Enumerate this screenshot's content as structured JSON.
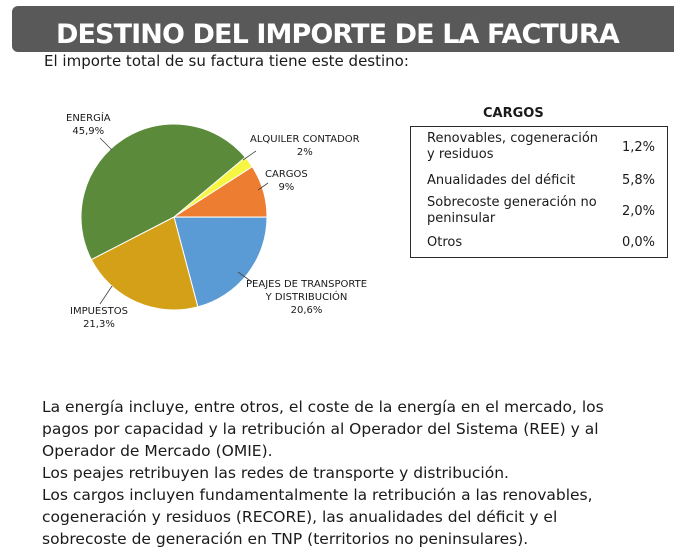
{
  "header": {
    "title": "DESTINO DEL IMPORTE DE LA FACTURA",
    "subtitle": "El importe total de su factura tiene este destino:"
  },
  "chart_data": {
    "type": "pie",
    "slices": [
      {
        "label": "ENERGÍA",
        "value_label": "45,9%",
        "value": 45.9,
        "color": "#5a8a3a"
      },
      {
        "label": "ALQUILER CONTADOR",
        "value_label": "2%",
        "value": 2,
        "color": "#f5f542"
      },
      {
        "label": "CARGOS",
        "value_label": "9%",
        "value": 9,
        "color": "#ed7d31"
      },
      {
        "label": "PEAJES DE TRANSPORTE Y DISTRIBUCIÓN",
        "label_lines": [
          "PEAJES DE TRANSPORTE",
          "Y DISTRIBUCIÓN"
        ],
        "value_label": "20,6%",
        "value": 20.6,
        "color": "#5b9bd5"
      },
      {
        "label": "IMPUESTOS",
        "value_label": "21,3%",
        "value": 21.3,
        "color": "#d4a017"
      }
    ]
  },
  "cargos": {
    "title": "CARGOS",
    "rows": [
      {
        "label_lines": [
          "Renovables, cogeneración",
          "y residuos"
        ],
        "value": "1,2%"
      },
      {
        "label_lines": [
          "Anualidades del déficit"
        ],
        "value": "5,8%"
      },
      {
        "label_lines": [
          "Sobrecoste generación no",
          "peninsular"
        ],
        "value": "2,0%"
      },
      {
        "label_lines": [
          "Otros"
        ],
        "value": "0,0%"
      }
    ]
  },
  "explanation": {
    "lines": [
      "La energía incluye, entre otros, el coste de la energía en el mercado, los",
      "pagos por capacidad y la retribución al Operador del Sistema (REE) y al",
      "Operador de Mercado (OMIE).",
      "Los peajes retribuyen las redes de transporte y distribución.",
      "Los cargos incluyen fundamentalmente la retribución a las renovables,",
      "cogeneración y residuos (RECORE), las anualidades del déficit y el",
      "sobrecoste de generación en TNP (territorios no peninsulares)."
    ]
  }
}
